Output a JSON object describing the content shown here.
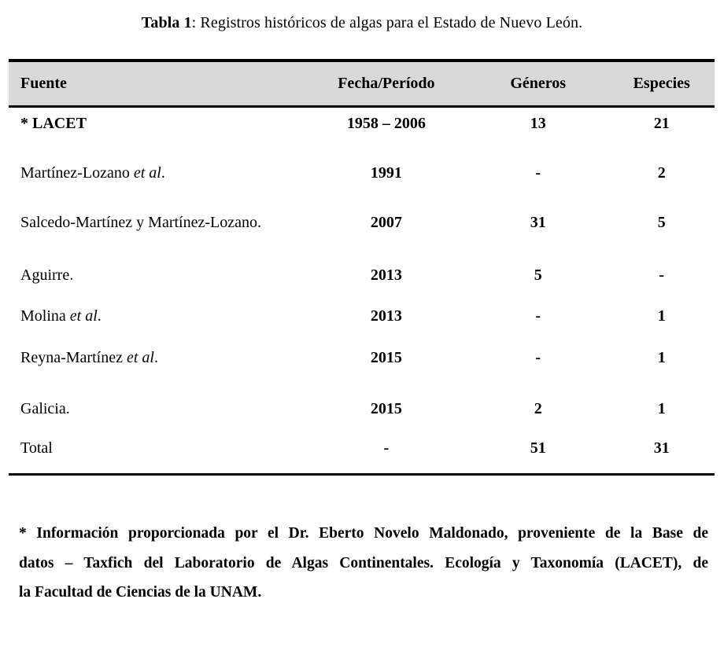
{
  "caption": {
    "label": "Tabla 1",
    "text": ": Registros históricos de algas para el Estado de Nuevo León."
  },
  "table": {
    "headers": [
      "Fuente",
      "Fecha/Período",
      "Géneros",
      "Especies"
    ],
    "rows": [
      {
        "fuente": "* LACET",
        "fuente_italic": "",
        "fuente_after": "",
        "fuente_bold": true,
        "fecha": "1958 – 2006",
        "generos": "13",
        "especies": "21"
      },
      {
        "fuente": "Martínez-Lozano ",
        "fuente_italic": "et al",
        "fuente_after": ".",
        "fuente_bold": false,
        "fecha": "1991",
        "generos": "-",
        "especies": "2"
      },
      {
        "fuente": "Salcedo-Martínez y Martínez-Lozano.",
        "fuente_italic": "",
        "fuente_after": "",
        "fuente_bold": false,
        "fecha": "2007",
        "generos": "31",
        "especies": "5"
      },
      {
        "fuente": "Aguirre.",
        "fuente_italic": "",
        "fuente_after": "",
        "fuente_bold": false,
        "fecha": "2013",
        "generos": "5",
        "especies": "-"
      },
      {
        "fuente": "Molina ",
        "fuente_italic": "et al",
        "fuente_after": ".",
        "fuente_bold": false,
        "fecha": "2013",
        "generos": "-",
        "especies": "1"
      },
      {
        "fuente": "Reyna-Martínez ",
        "fuente_italic": "et al",
        "fuente_after": ".",
        "fuente_bold": false,
        "fecha": "2015",
        "generos": "-",
        "especies": "1"
      },
      {
        "fuente": "Galicia.",
        "fuente_italic": "",
        "fuente_after": "",
        "fuente_bold": false,
        "fecha": "2015",
        "generos": "2",
        "especies": "1"
      },
      {
        "fuente": "Total",
        "fuente_italic": "",
        "fuente_after": "",
        "fuente_bold": false,
        "fecha": "-",
        "generos": "51",
        "especies": "31"
      }
    ]
  },
  "footnote": {
    "lines": [
      "* Información proporcionada por el Dr. Eberto Novelo Maldonado, proveniente de la Base de",
      "datos – Taxfich del Laboratorio de Algas Continentales. Ecología y Taxonomía (LACET), de",
      "la Facultad de Ciencias de la UNAM."
    ]
  },
  "colors": {
    "header_bg": "#d9d9d9",
    "rule": "#000000",
    "text": "#000000",
    "background": "#ffffff"
  }
}
